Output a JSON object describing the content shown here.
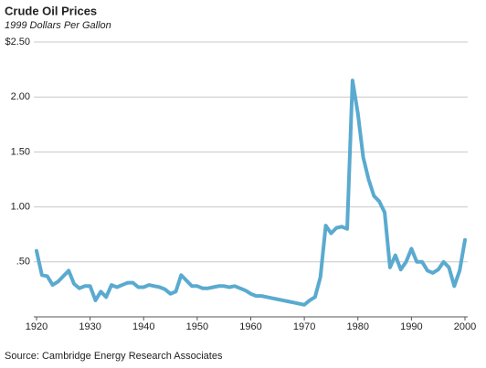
{
  "chart_data": {
    "type": "line",
    "title": "Crude Oil Prices",
    "subtitle": "1999 Dollars Per Gallon",
    "source": "Source:  Cambridge Energy Research Associates",
    "x": [
      1920,
      1921,
      1922,
      1923,
      1924,
      1925,
      1926,
      1927,
      1928,
      1929,
      1930,
      1931,
      1932,
      1933,
      1934,
      1935,
      1936,
      1937,
      1938,
      1939,
      1940,
      1941,
      1942,
      1943,
      1944,
      1945,
      1946,
      1947,
      1948,
      1949,
      1950,
      1951,
      1952,
      1953,
      1954,
      1955,
      1956,
      1957,
      1958,
      1959,
      1960,
      1961,
      1962,
      1963,
      1964,
      1965,
      1966,
      1967,
      1968,
      1969,
      1970,
      1971,
      1972,
      1973,
      1974,
      1975,
      1976,
      1977,
      1978,
      1979,
      1980,
      1981,
      1982,
      1983,
      1984,
      1985,
      1986,
      1987,
      1988,
      1989,
      1990,
      1991,
      1992,
      1993,
      1994,
      1995,
      1996,
      1997,
      1998,
      1999,
      2000
    ],
    "values": [
      0.6,
      0.38,
      0.37,
      0.29,
      0.32,
      0.37,
      0.42,
      0.3,
      0.26,
      0.28,
      0.28,
      0.15,
      0.23,
      0.18,
      0.29,
      0.27,
      0.29,
      0.31,
      0.31,
      0.27,
      0.27,
      0.29,
      0.28,
      0.27,
      0.25,
      0.21,
      0.23,
      0.38,
      0.33,
      0.28,
      0.28,
      0.26,
      0.26,
      0.27,
      0.28,
      0.28,
      0.27,
      0.28,
      0.26,
      0.24,
      0.21,
      0.19,
      0.19,
      0.18,
      0.17,
      0.16,
      0.15,
      0.14,
      0.13,
      0.12,
      0.11,
      0.15,
      0.18,
      0.36,
      0.83,
      0.76,
      0.81,
      0.82,
      0.8,
      2.15,
      1.85,
      1.45,
      1.25,
      1.1,
      1.05,
      0.95,
      0.45,
      0.56,
      0.43,
      0.5,
      0.62,
      0.5,
      0.5,
      0.42,
      0.4,
      0.43,
      0.5,
      0.45,
      0.28,
      0.42,
      0.7
    ],
    "color": "#5aaad0",
    "xlim": [
      1920,
      2000
    ],
    "xticks": [
      1920,
      1930,
      1940,
      1950,
      1960,
      1970,
      1980,
      1990,
      2000
    ],
    "ylim": [
      0,
      2.5
    ],
    "yticks": [
      {
        "value": 2.5,
        "label": "$2.50"
      },
      {
        "value": 2,
        "label": "2.00"
      },
      {
        "value": 1.5,
        "label": "1.50"
      },
      {
        "value": 1,
        "label": "1.00"
      },
      {
        "value": 0.5,
        "label": ".50"
      }
    ],
    "grid": true
  }
}
